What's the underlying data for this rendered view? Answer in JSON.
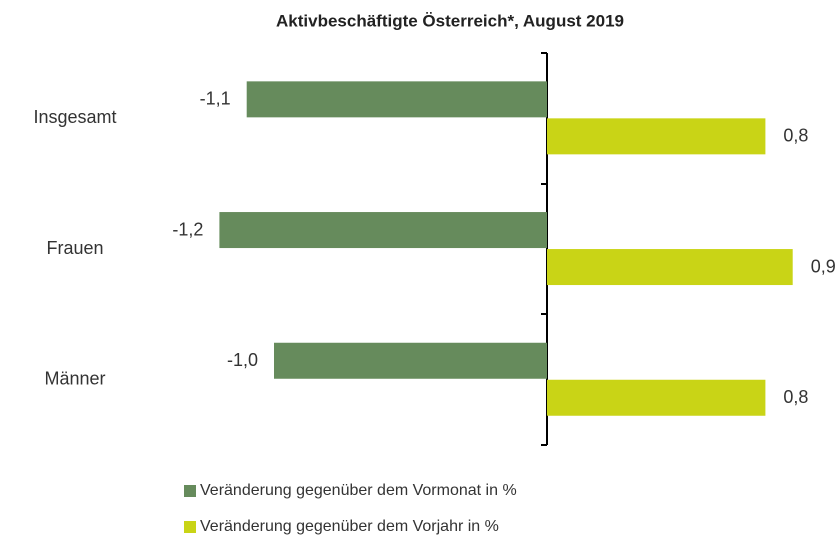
{
  "chart_data": {
    "type": "hbar",
    "title": "Aktivbeschäftigte Österreich*, August 2019",
    "categories": [
      "Insgesamt",
      "Frauen",
      "Männer"
    ],
    "series": [
      {
        "name": "Veränderung gegenüber dem Vormonat in %",
        "color": "#668b5c",
        "values": [
          -1.1,
          -1.2,
          -1.0
        ],
        "value_labels": [
          "-1,1",
          "-1,2",
          "-1,0"
        ]
      },
      {
        "name": "Veränderung gegenüber dem Vorjahr in %",
        "color": "#c9d416",
        "values": [
          0.8,
          0.9,
          0.8
        ],
        "value_labels": [
          "0,8",
          "0,9",
          "0,8"
        ]
      }
    ]
  }
}
